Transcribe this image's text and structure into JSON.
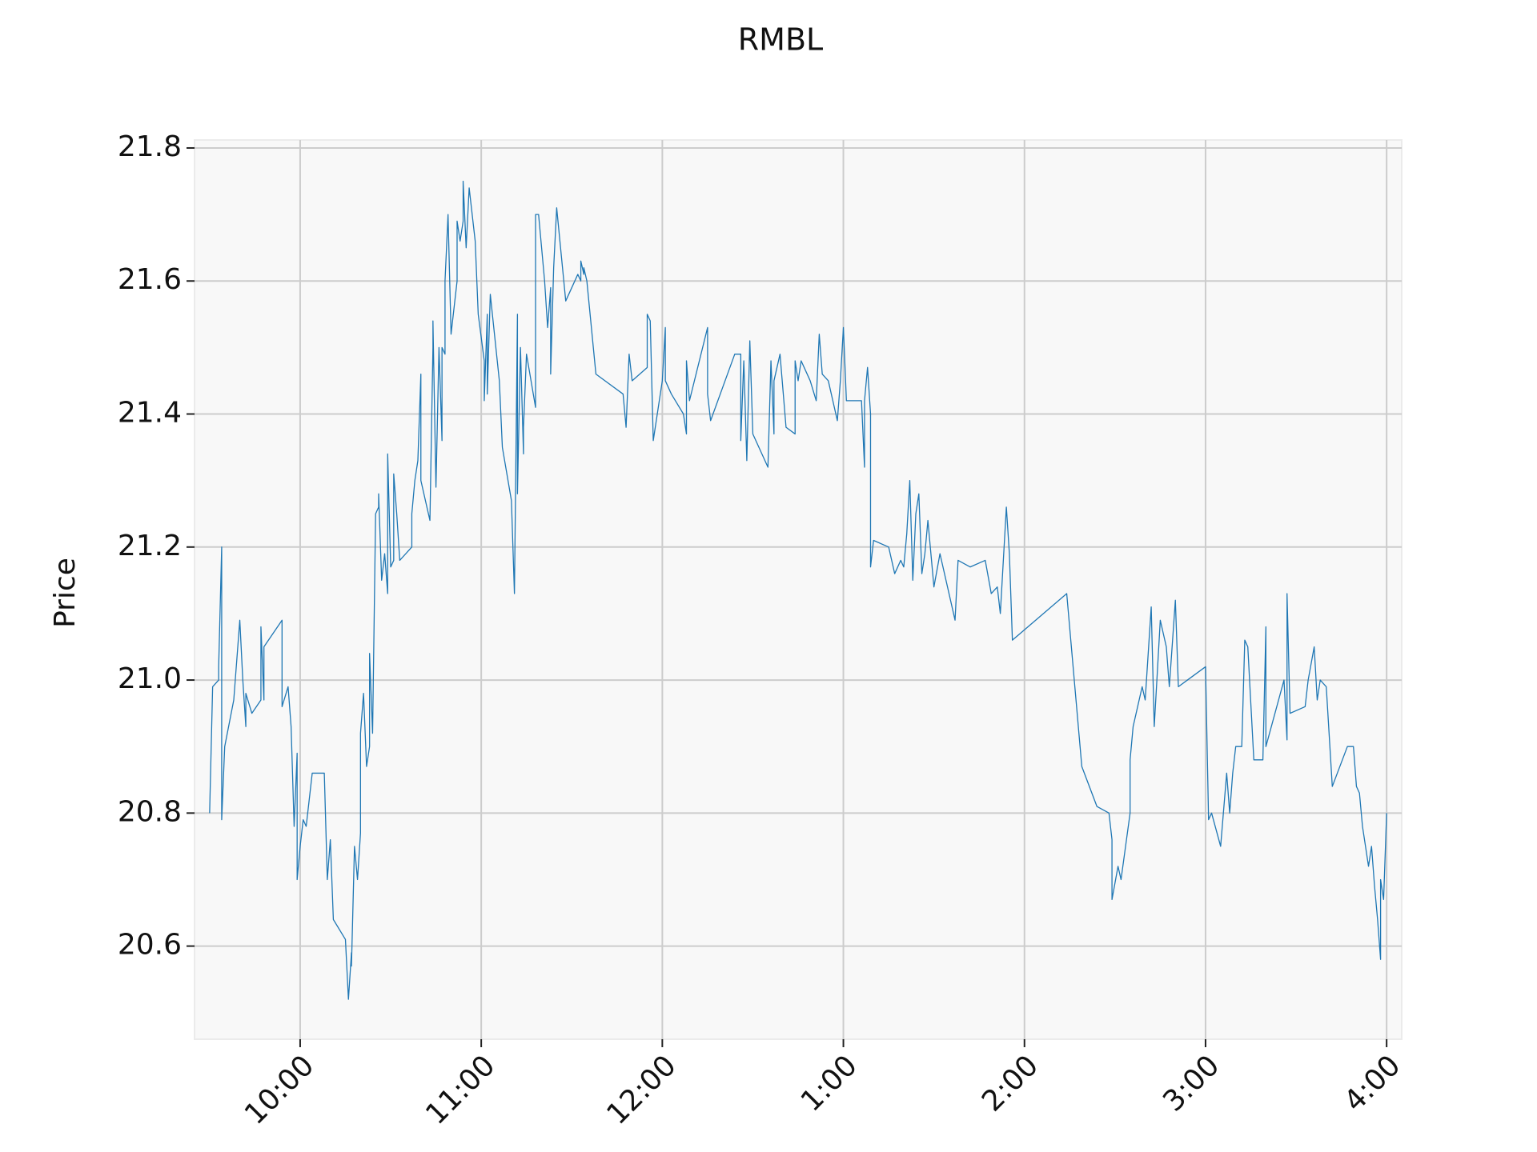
{
  "chart_data": {
    "type": "line",
    "title": "RMBL",
    "y_label": "Price",
    "color": "#1f77b4",
    "grid": true,
    "xlim": [
      565,
      965
    ],
    "ylim": [
      20.46,
      21.812
    ],
    "xticks": [
      {
        "value": 600,
        "label": "10:00"
      },
      {
        "value": 660,
        "label": "11:00"
      },
      {
        "value": 720,
        "label": "12:00"
      },
      {
        "value": 780,
        "label": "1:00"
      },
      {
        "value": 840,
        "label": "2:00"
      },
      {
        "value": 900,
        "label": "3:00"
      },
      {
        "value": 960,
        "label": "4:00"
      }
    ],
    "yticks": [
      20.6,
      20.8,
      {
        "value": 21,
        "label": "21.0"
      },
      21.2,
      21.4,
      21.6,
      21.8
    ],
    "x": [
      570,
      571,
      573,
      573,
      574,
      574,
      575,
      578,
      580,
      581,
      582,
      582,
      584,
      587,
      587,
      588,
      588,
      594,
      594,
      596,
      597,
      598,
      599,
      599,
      599,
      600,
      601,
      602,
      604,
      608,
      609,
      610,
      611,
      615,
      616,
      617,
      617,
      618,
      619,
      620,
      620,
      621,
      622,
      623,
      623,
      624,
      625,
      626,
      626,
      627,
      628,
      629,
      629,
      630,
      631,
      631,
      632,
      633,
      637,
      637,
      638,
      639,
      640,
      640,
      643,
      644,
      644,
      645,
      646,
      647,
      647,
      648,
      648,
      649,
      650,
      652,
      652,
      653,
      654,
      654,
      655,
      656,
      658,
      659,
      661,
      661,
      662,
      662,
      663,
      666,
      667,
      670,
      671,
      672,
      672,
      673,
      674,
      674,
      675,
      678,
      678,
      679,
      681,
      682,
      683,
      683,
      684,
      685,
      688,
      692,
      693,
      693,
      694,
      694,
      695,
      698,
      707,
      708,
      709,
      710,
      715,
      715,
      716,
      717,
      720,
      721,
      721,
      723,
      727,
      728,
      728,
      729,
      735,
      735,
      736,
      744,
      746,
      746,
      747,
      748,
      749,
      750,
      755,
      756,
      757,
      757,
      759,
      761,
      764,
      764,
      765,
      766,
      769,
      771,
      772,
      772,
      773,
      775,
      778,
      779,
      780,
      781,
      786,
      787,
      787,
      788,
      789,
      789,
      790,
      795,
      797,
      799,
      800,
      801,
      802,
      803,
      804,
      805,
      806,
      807,
      808,
      810,
      812,
      817,
      818,
      822,
      827,
      829,
      831,
      832,
      834,
      835,
      836,
      854,
      859,
      864,
      868,
      869,
      869,
      871,
      872,
      875,
      875,
      876,
      879,
      880,
      881,
      882,
      883,
      885,
      887,
      888,
      890,
      891,
      894,
      900,
      901,
      902,
      905,
      907,
      908,
      909,
      910,
      912,
      913,
      914,
      916,
      919,
      920,
      920,
      926,
      927,
      927,
      928,
      933,
      934,
      936,
      937,
      938,
      940,
      942,
      947,
      949,
      950,
      951,
      952,
      954,
      955,
      956,
      957,
      958,
      958,
      959,
      960
    ],
    "values": [
      20.8,
      20.99,
      21.0,
      21.02,
      21.2,
      20.79,
      20.9,
      20.97,
      21.09,
      21.0,
      20.93,
      20.98,
      20.95,
      20.97,
      21.08,
      20.97,
      21.05,
      21.09,
      20.96,
      20.99,
      20.93,
      20.78,
      20.89,
      20.7,
      20.7,
      20.75,
      20.79,
      20.78,
      20.86,
      20.86,
      20.7,
      20.76,
      20.64,
      20.61,
      20.52,
      20.59,
      20.57,
      20.75,
      20.7,
      20.77,
      20.92,
      20.98,
      20.87,
      20.9,
      21.04,
      20.92,
      21.25,
      21.26,
      21.28,
      21.15,
      21.19,
      21.13,
      21.34,
      21.17,
      21.18,
      21.31,
      21.25,
      21.18,
      21.2,
      21.25,
      21.3,
      21.33,
      21.46,
      21.3,
      21.24,
      21.5,
      21.54,
      21.29,
      21.5,
      21.36,
      21.5,
      21.49,
      21.6,
      21.7,
      21.52,
      21.6,
      21.69,
      21.66,
      21.69,
      21.75,
      21.65,
      21.74,
      21.66,
      21.55,
      21.48,
      21.42,
      21.55,
      21.43,
      21.58,
      21.45,
      21.35,
      21.27,
      21.13,
      21.55,
      21.28,
      21.5,
      21.34,
      21.38,
      21.49,
      21.41,
      21.7,
      21.7,
      21.6,
      21.53,
      21.59,
      21.46,
      21.62,
      21.71,
      21.57,
      21.61,
      21.6,
      21.63,
      21.61,
      21.62,
      21.6,
      21.46,
      21.43,
      21.38,
      21.49,
      21.45,
      21.47,
      21.55,
      21.54,
      21.36,
      21.45,
      21.53,
      21.45,
      21.43,
      21.4,
      21.37,
      21.48,
      21.42,
      21.53,
      21.43,
      21.39,
      21.49,
      21.49,
      21.36,
      21.48,
      21.33,
      21.51,
      21.37,
      21.32,
      21.48,
      21.37,
      21.45,
      21.49,
      21.38,
      21.37,
      21.48,
      21.45,
      21.48,
      21.45,
      21.42,
      21.52,
      21.52,
      21.46,
      21.45,
      21.39,
      21.45,
      21.53,
      21.42,
      21.42,
      21.32,
      21.42,
      21.47,
      21.4,
      21.17,
      21.21,
      21.2,
      21.16,
      21.18,
      21.17,
      21.22,
      21.3,
      21.15,
      21.25,
      21.28,
      21.16,
      21.19,
      21.24,
      21.14,
      21.19,
      21.09,
      21.18,
      21.17,
      21.18,
      21.13,
      21.14,
      21.1,
      21.26,
      21.19,
      21.06,
      21.13,
      20.87,
      20.81,
      20.8,
      20.76,
      20.67,
      20.72,
      20.7,
      20.8,
      20.88,
      20.93,
      20.99,
      20.97,
      21.04,
      21.11,
      20.93,
      21.09,
      21.05,
      20.99,
      21.12,
      20.99,
      21.0,
      21.02,
      20.79,
      20.8,
      20.75,
      20.86,
      20.8,
      20.86,
      20.9,
      20.9,
      21.06,
      21.05,
      20.88,
      20.88,
      21.08,
      20.9,
      21.0,
      20.91,
      21.13,
      20.95,
      20.96,
      21.0,
      21.05,
      20.97,
      21.0,
      20.99,
      20.84,
      20.9,
      20.9,
      20.84,
      20.83,
      20.78,
      20.72,
      20.75,
      20.69,
      20.64,
      20.58,
      20.7,
      20.67,
      20.8
    ]
  }
}
